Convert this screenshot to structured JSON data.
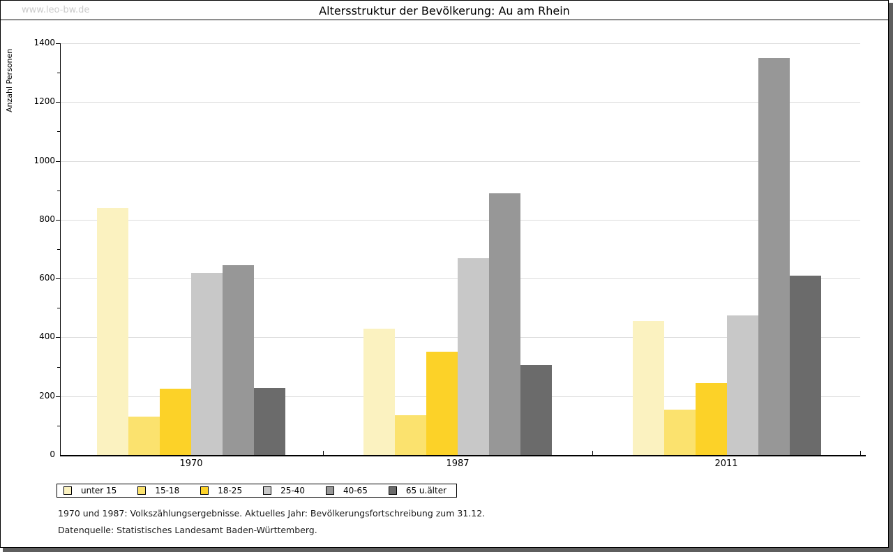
{
  "watermark": "www.leo-bw.de",
  "title": "Altersstruktur der Bevölkerung: Au am Rhein",
  "chart_data": {
    "type": "bar",
    "title": "Altersstruktur der Bevölkerung: Au am Rhein",
    "xlabel": "",
    "ylabel": "Anzahl Personen",
    "ylim": [
      0,
      1400
    ],
    "ytick_step": 200,
    "grid": true,
    "legend_position": "bottom",
    "categories": [
      "1970",
      "1987",
      "2011"
    ],
    "series": [
      {
        "name": "unter 15",
        "color": "#FBF2C0",
        "values": [
          840,
          430,
          455
        ]
      },
      {
        "name": "15-18",
        "color": "#FBE26E",
        "values": [
          130,
          135,
          155
        ]
      },
      {
        "name": "18-25",
        "color": "#FCD228",
        "values": [
          225,
          350,
          245
        ]
      },
      {
        "name": "25-40",
        "color": "#C8C8C8",
        "values": [
          620,
          670,
          475
        ]
      },
      {
        "name": "40-65",
        "color": "#979797",
        "values": [
          645,
          890,
          1350
        ]
      },
      {
        "name": "65 u.älter",
        "color": "#6B6B6B",
        "values": [
          228,
          305,
          610
        ]
      }
    ]
  },
  "footer": {
    "line1": "1970 und 1987: Volkszählungsergebnisse. Aktuelles Jahr: Bevölkerungsfortschreibung zum 31.12.",
    "line2": "Datenquelle: Statistisches Landesamt Baden-Württemberg."
  }
}
